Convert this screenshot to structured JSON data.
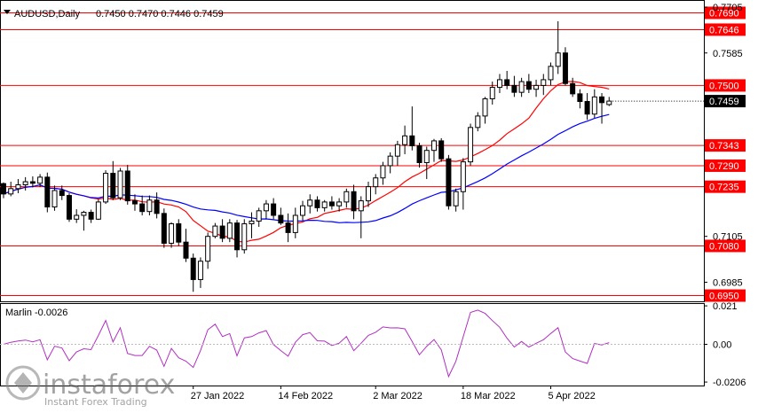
{
  "chart_data": [
    {
      "type": "candlestick",
      "title": "AUDUSD,Daily",
      "ohlc_header": "0.7450 0.7470 0.7446 0.7459",
      "last_price": "0.7459",
      "y_ticks": [
        "0.7705",
        "0.7585",
        "0.7105",
        "0.6985"
      ],
      "y_range": [
        0.6935,
        0.7712
      ],
      "x_ticks": [
        "27 Jan 2022",
        "14 Feb 2022",
        "2 Mar 2022",
        "18 Mar 2022",
        "5 Apr 2022"
      ],
      "x_tick_bar_index": [
        26,
        38,
        51,
        63,
        75
      ],
      "levels": [
        {
          "label": "0.7690",
          "value": 0.769
        },
        {
          "label": "0.7646",
          "value": 0.7646
        },
        {
          "label": "0.7500",
          "value": 0.75
        },
        {
          "label": "0.7343",
          "value": 0.7343
        },
        {
          "label": "0.7290",
          "value": 0.729
        },
        {
          "label": "0.7235",
          "value": 0.7235
        },
        {
          "label": "0.7080",
          "value": 0.708
        },
        {
          "label": "0.6950",
          "value": 0.695
        }
      ],
      "candles": [
        [
          0.7243,
          0.7246,
          0.7205,
          0.7216
        ],
        [
          0.7216,
          0.7248,
          0.721,
          0.723
        ],
        [
          0.723,
          0.7255,
          0.7218,
          0.724
        ],
        [
          0.724,
          0.726,
          0.7225,
          0.7248
        ],
        [
          0.7248,
          0.7262,
          0.7233,
          0.7244
        ],
        [
          0.7244,
          0.7268,
          0.7234,
          0.726
        ],
        [
          0.726,
          0.7272,
          0.7168,
          0.7182
        ],
        [
          0.7182,
          0.7238,
          0.7172,
          0.7225
        ],
        [
          0.7225,
          0.7238,
          0.72,
          0.7212
        ],
        [
          0.7212,
          0.7218,
          0.7143,
          0.715
        ],
        [
          0.715,
          0.7176,
          0.714,
          0.716
        ],
        [
          0.716,
          0.7172,
          0.712,
          0.7168
        ],
        [
          0.7168,
          0.7175,
          0.714,
          0.715
        ],
        [
          0.715,
          0.7202,
          0.7148,
          0.7195
        ],
        [
          0.7195,
          0.7278,
          0.719,
          0.727
        ],
        [
          0.727,
          0.7302,
          0.72,
          0.7206
        ],
        [
          0.7206,
          0.7284,
          0.72,
          0.7276
        ],
        [
          0.7276,
          0.7292,
          0.7188,
          0.7198
        ],
        [
          0.7198,
          0.7215,
          0.7172,
          0.719
        ],
        [
          0.719,
          0.7212,
          0.716,
          0.717
        ],
        [
          0.717,
          0.7212,
          0.716,
          0.72
        ],
        [
          0.72,
          0.722,
          0.7152,
          0.7165
        ],
        [
          0.7165,
          0.7178,
          0.7075,
          0.7087
        ],
        [
          0.7087,
          0.7142,
          0.7075,
          0.7138
        ],
        [
          0.7138,
          0.715,
          0.708,
          0.709
        ],
        [
          0.709,
          0.7125,
          0.7038,
          0.7048
        ],
        [
          0.7048,
          0.706,
          0.696,
          0.6992
        ],
        [
          0.6992,
          0.705,
          0.697,
          0.704
        ],
        [
          0.704,
          0.7115,
          0.702,
          0.7105
        ],
        [
          0.7105,
          0.714,
          0.71,
          0.7132
        ],
        [
          0.7132,
          0.715,
          0.709,
          0.71
        ],
        [
          0.71,
          0.715,
          0.709,
          0.714
        ],
        [
          0.714,
          0.7148,
          0.705,
          0.707
        ],
        [
          0.707,
          0.715,
          0.706,
          0.7138
        ],
        [
          0.7138,
          0.7168,
          0.71,
          0.7145
        ],
        [
          0.7145,
          0.718,
          0.713,
          0.7172
        ],
        [
          0.7172,
          0.72,
          0.715,
          0.719
        ],
        [
          0.719,
          0.7205,
          0.715,
          0.716
        ],
        [
          0.716,
          0.718,
          0.7135,
          0.714
        ],
        [
          0.714,
          0.7165,
          0.709,
          0.7115
        ],
        [
          0.7115,
          0.718,
          0.71,
          0.716
        ],
        [
          0.716,
          0.7198,
          0.7145,
          0.7185
        ],
        [
          0.7185,
          0.7215,
          0.7165,
          0.72
        ],
        [
          0.72,
          0.721,
          0.717,
          0.718
        ],
        [
          0.718,
          0.72,
          0.717,
          0.7195
        ],
        [
          0.7195,
          0.721,
          0.7175,
          0.7185
        ],
        [
          0.7185,
          0.7205,
          0.717,
          0.7195
        ],
        [
          0.7195,
          0.723,
          0.718,
          0.7222
        ],
        [
          0.7222,
          0.724,
          0.715,
          0.7172
        ],
        [
          0.7172,
          0.721,
          0.71,
          0.7198
        ],
        [
          0.7198,
          0.7248,
          0.7182,
          0.7235
        ],
        [
          0.7235,
          0.7268,
          0.7215,
          0.7258
        ],
        [
          0.7258,
          0.73,
          0.724,
          0.729
        ],
        [
          0.729,
          0.7325,
          0.727,
          0.7315
        ],
        [
          0.7315,
          0.7355,
          0.729,
          0.7345
        ],
        [
          0.7345,
          0.7395,
          0.732,
          0.7368
        ],
        [
          0.7368,
          0.7445,
          0.733,
          0.7342
        ],
        [
          0.7342,
          0.735,
          0.7285,
          0.7298
        ],
        [
          0.7298,
          0.734,
          0.7255,
          0.733
        ],
        [
          0.733,
          0.736,
          0.73,
          0.7355
        ],
        [
          0.7355,
          0.7362,
          0.73,
          0.7308
        ],
        [
          0.7308,
          0.7318,
          0.7175,
          0.7185
        ],
        [
          0.7185,
          0.723,
          0.717,
          0.7222
        ],
        [
          0.7222,
          0.731,
          0.7175,
          0.73
        ],
        [
          0.73,
          0.74,
          0.729,
          0.739
        ],
        [
          0.739,
          0.743,
          0.738,
          0.742
        ],
        [
          0.742,
          0.747,
          0.74,
          0.7465
        ],
        [
          0.7465,
          0.751,
          0.745,
          0.7495
        ],
        [
          0.7495,
          0.753,
          0.748,
          0.7515
        ],
        [
          0.7515,
          0.7538,
          0.749,
          0.75
        ],
        [
          0.75,
          0.7525,
          0.747,
          0.7482
        ],
        [
          0.7482,
          0.752,
          0.747,
          0.751
        ],
        [
          0.751,
          0.753,
          0.748,
          0.749
        ],
        [
          0.749,
          0.7515,
          0.747,
          0.75
        ],
        [
          0.75,
          0.753,
          0.7475,
          0.7515
        ],
        [
          0.7515,
          0.756,
          0.75,
          0.755
        ],
        [
          0.755,
          0.7668,
          0.753,
          0.7585
        ],
        [
          0.7585,
          0.76,
          0.75,
          0.7505
        ],
        [
          0.7505,
          0.752,
          0.747,
          0.7478
        ],
        [
          0.7478,
          0.749,
          0.744,
          0.7458
        ],
        [
          0.7458,
          0.748,
          0.741,
          0.7425
        ],
        [
          0.7425,
          0.749,
          0.7415,
          0.747
        ],
        [
          0.747,
          0.748,
          0.74,
          0.7455
        ],
        [
          0.745,
          0.747,
          0.7446,
          0.7459
        ]
      ],
      "marlin": {
        "label": "Marlin -0.0026",
        "y_ticks": [
          "0.021",
          "0.00",
          "-0.0206"
        ],
        "y_range": [
          -0.0225,
          0.0225
        ]
      }
    }
  ],
  "watermark": {
    "brand": "instaforex",
    "tagline": "Instant Forex Trading"
  },
  "colors": {
    "bull": "#ffffff",
    "bear": "#000000",
    "level": "#ff0000",
    "ma_fast": "#ff0000",
    "ma_slow": "#0000ff",
    "oscillator": "#b030c0",
    "level_label_bg": "#ff0000"
  }
}
